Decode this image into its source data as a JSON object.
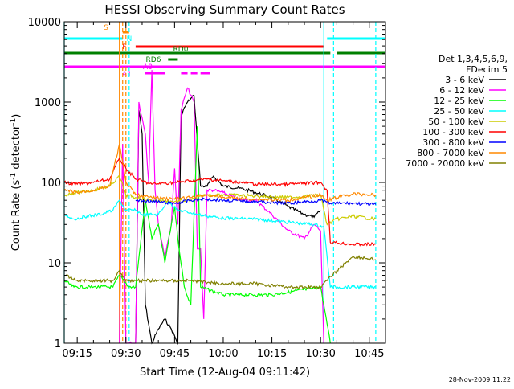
{
  "chart_data": {
    "type": "line",
    "title": "HESSI Observing Summary Count Rates",
    "xlabel": "Start Time (12-Aug-04 09:11:42)",
    "ylabel_main": "Count Rate (s",
    "ylabel_sup1": "-1",
    "ylabel_mid": " detector",
    "ylabel_sup2": "-1",
    "ylabel_end": ")",
    "y_scale": "log",
    "ylim": [
      1,
      10000
    ],
    "xlim": [
      "09:11",
      "10:50"
    ],
    "x_ticks": [
      "09:15",
      "09:30",
      "09:45",
      "10:00",
      "10:15",
      "10:30",
      "10:45"
    ],
    "y_ticks": [
      "1",
      "10",
      "100",
      "1000",
      "10000"
    ],
    "footer_date": "28-Nov-2009 11:22",
    "legend": {
      "header": [
        "Det 1,3,4,5,6,9,",
        "FDecim 5"
      ],
      "entries": [
        {
          "label": "3 - 6 keV",
          "color": "#000000"
        },
        {
          "label": "6 - 12 keV",
          "color": "#ff00ff"
        },
        {
          "label": "12 - 25 keV",
          "color": "#00ff00"
        },
        {
          "label": "25 - 50 keV",
          "color": "#00ffff"
        },
        {
          "label": "50 - 100 keV",
          "color": "#cccc00"
        },
        {
          "label": "100 - 300 keV",
          "color": "#ff0000"
        },
        {
          "label": "300 - 800 keV",
          "color": "#0000ff"
        },
        {
          "label": "800 - 7000 keV",
          "color": "#ff8800"
        },
        {
          "label": "7000 - 20000 keV",
          "color": "#808000"
        }
      ]
    },
    "flags": [
      {
        "label": "S",
        "color": "#ff8800",
        "segments": [
          [
            "09:29",
            "09:31"
          ]
        ]
      },
      {
        "label": "N",
        "color": "#00ffff",
        "segments": [
          [
            "09:11",
            "09:29"
          ],
          [
            "10:32",
            "10:50"
          ]
        ]
      },
      {
        "label": "F",
        "color": "#ff0000",
        "segments": [
          [
            "09:33",
            "10:31"
          ]
        ]
      },
      {
        "label": "RD0",
        "color": "#008000",
        "segments": [
          [
            "09:11",
            "10:33"
          ],
          [
            "10:35",
            "10:50"
          ]
        ]
      },
      {
        "label": "RD6",
        "color": "#008000",
        "segments": [
          [
            "09:43",
            "09:46"
          ]
        ]
      },
      {
        "label": "A0",
        "color": "#ff00ff",
        "segments": [
          [
            "09:11",
            "10:50"
          ]
        ]
      },
      {
        "label": "A1",
        "color": "#ff00ff",
        "segments": [
          [
            "09:36",
            "09:42"
          ],
          [
            "09:47",
            "09:49"
          ],
          [
            "09:50",
            "09:52"
          ],
          [
            "09:53",
            "09:56"
          ]
        ]
      }
    ],
    "vlines": [
      {
        "time": "09:11",
        "color": "#00ffff",
        "style": "solid"
      },
      {
        "time": "09:28",
        "color": "#ff8800",
        "style": "solid"
      },
      {
        "time": "09:29",
        "color": "#ff8800",
        "style": "dashed"
      },
      {
        "time": "09:30",
        "color": "#ff8800",
        "style": "dashed"
      },
      {
        "time": "09:31",
        "color": "#00ffff",
        "style": "dashed"
      },
      {
        "time": "10:31",
        "color": "#00ffff",
        "style": "solid"
      },
      {
        "time": "10:34",
        "color": "#00ffff",
        "style": "dashed"
      },
      {
        "time": "10:47",
        "color": "#00ffff",
        "style": "dashed"
      }
    ],
    "series": [
      {
        "name": "3 - 6 keV",
        "color": "#000000",
        "points": [
          [
            "09:33",
            1
          ],
          [
            "09:34",
            800
          ],
          [
            "09:35",
            400
          ],
          [
            "09:36",
            3
          ],
          [
            "09:38",
            1
          ],
          [
            "09:40",
            1.5
          ],
          [
            "09:42",
            2
          ],
          [
            "09:44",
            1.5
          ],
          [
            "09:46",
            1
          ],
          [
            "09:47",
            700
          ],
          [
            "09:49",
            1000
          ],
          [
            "09:51",
            1200
          ],
          [
            "09:53",
            90
          ],
          [
            "09:55",
            90
          ],
          [
            "09:57",
            120
          ],
          [
            "10:00",
            90
          ],
          [
            "10:05",
            85
          ],
          [
            "10:10",
            75
          ],
          [
            "10:15",
            65
          ],
          [
            "10:20",
            50
          ],
          [
            "10:25",
            40
          ],
          [
            "10:28",
            37
          ],
          [
            "10:30",
            45
          ]
        ]
      },
      {
        "name": "6 - 12 keV",
        "color": "#ff00ff",
        "points": [
          [
            "09:28",
            1
          ],
          [
            "09:29",
            300
          ],
          [
            "09:30",
            1
          ],
          [
            "09:31",
            1
          ],
          [
            "09:33",
            1
          ],
          [
            "09:34",
            1000
          ],
          [
            "09:36",
            400
          ],
          [
            "09:37",
            100
          ],
          [
            "09:38",
            2500
          ],
          [
            "09:39",
            80
          ],
          [
            "09:40",
            30
          ],
          [
            "09:42",
            12
          ],
          [
            "09:44",
            30
          ],
          [
            "09:45",
            150
          ],
          [
            "09:46",
            30
          ],
          [
            "09:47",
            800
          ],
          [
            "09:49",
            1500
          ],
          [
            "09:51",
            1000
          ],
          [
            "09:52",
            15
          ],
          [
            "09:53",
            15
          ],
          [
            "09:54",
            2
          ],
          [
            "09:55",
            80
          ],
          [
            "09:57",
            80
          ],
          [
            "10:00",
            75
          ],
          [
            "10:05",
            60
          ],
          [
            "10:10",
            60
          ],
          [
            "10:15",
            40
          ],
          [
            "10:20",
            25
          ],
          [
            "10:25",
            20
          ],
          [
            "10:28",
            30
          ],
          [
            "10:30",
            25
          ],
          [
            "10:31",
            1
          ]
        ]
      },
      {
        "name": "12 - 25 keV",
        "color": "#00ff00",
        "points": [
          [
            "09:11",
            6
          ],
          [
            "09:14",
            5
          ],
          [
            "09:20",
            5
          ],
          [
            "09:26",
            5
          ],
          [
            "09:28",
            7
          ],
          [
            "09:31",
            5
          ],
          [
            "09:33",
            5
          ],
          [
            "09:36",
            60
          ],
          [
            "09:38",
            20
          ],
          [
            "09:40",
            30
          ],
          [
            "09:42",
            10
          ],
          [
            "09:44",
            30
          ],
          [
            "09:45",
            50
          ],
          [
            "09:46",
            20
          ],
          [
            "09:48",
            5
          ],
          [
            "09:50",
            3
          ],
          [
            "09:52",
            500
          ],
          [
            "09:53",
            5
          ],
          [
            "10:00",
            4
          ],
          [
            "10:15",
            4
          ],
          [
            "10:30",
            5
          ],
          [
            "10:31",
            3
          ],
          [
            "10:33",
            1
          ]
        ]
      },
      {
        "name": "25 - 50 keV",
        "color": "#00ffff",
        "points": [
          [
            "09:11",
            40
          ],
          [
            "09:14",
            35
          ],
          [
            "09:18",
            38
          ],
          [
            "09:22",
            40
          ],
          [
            "09:26",
            45
          ],
          [
            "09:28",
            60
          ],
          [
            "09:30",
            45
          ],
          [
            "09:33",
            45
          ],
          [
            "09:35",
            40
          ],
          [
            "09:38",
            40
          ],
          [
            "09:40",
            40
          ],
          [
            "09:43",
            60
          ],
          [
            "09:46",
            45
          ],
          [
            "09:50",
            42
          ],
          [
            "09:55",
            38
          ],
          [
            "10:00",
            36
          ],
          [
            "10:10",
            35
          ],
          [
            "10:20",
            32
          ],
          [
            "10:28",
            30
          ],
          [
            "10:31",
            28
          ],
          [
            "10:33",
            5
          ],
          [
            "10:40",
            5
          ],
          [
            "10:47",
            5
          ]
        ]
      },
      {
        "name": "50 - 100 keV",
        "color": "#cccc00",
        "points": [
          [
            "09:11",
            70
          ],
          [
            "09:15",
            75
          ],
          [
            "09:20",
            80
          ],
          [
            "09:25",
            90
          ],
          [
            "09:28",
            120
          ],
          [
            "09:30",
            70
          ],
          [
            "09:33",
            65
          ],
          [
            "09:38",
            60
          ],
          [
            "09:45",
            58
          ],
          [
            "09:50",
            60
          ],
          [
            "09:55",
            70
          ],
          [
            "10:00",
            70
          ],
          [
            "10:10",
            68
          ],
          [
            "10:20",
            65
          ],
          [
            "10:30",
            70
          ],
          [
            "10:32",
            30
          ],
          [
            "10:35",
            35
          ],
          [
            "10:40",
            38
          ],
          [
            "10:47",
            35
          ]
        ]
      },
      {
        "name": "100 - 300 keV",
        "color": "#ff0000",
        "points": [
          [
            "09:11",
            100
          ],
          [
            "09:15",
            95
          ],
          [
            "09:20",
            100
          ],
          [
            "09:25",
            110
          ],
          [
            "09:28",
            200
          ],
          [
            "09:30",
            150
          ],
          [
            "09:33",
            110
          ],
          [
            "09:38",
            95
          ],
          [
            "09:45",
            100
          ],
          [
            "09:50",
            105
          ],
          [
            "09:55",
            110
          ],
          [
            "10:00",
            105
          ],
          [
            "10:10",
            95
          ],
          [
            "10:20",
            95
          ],
          [
            "10:30",
            100
          ],
          [
            "10:32",
            80
          ],
          [
            "10:33",
            18
          ],
          [
            "10:40",
            17
          ],
          [
            "10:47",
            17
          ]
        ]
      },
      {
        "name": "300 - 800 keV",
        "color": "#0000ff",
        "points": [
          [
            "09:33",
            60
          ],
          [
            "09:38",
            58
          ],
          [
            "09:45",
            55
          ],
          [
            "09:50",
            60
          ],
          [
            "09:55",
            62
          ],
          [
            "10:00",
            60
          ],
          [
            "10:10",
            58
          ],
          [
            "10:20",
            55
          ],
          [
            "10:30",
            60
          ],
          [
            "10:33",
            55
          ],
          [
            "10:40",
            55
          ],
          [
            "10:47",
            53
          ]
        ]
      },
      {
        "name": "800 - 7000 keV",
        "color": "#ff8800",
        "points": [
          [
            "09:11",
            80
          ],
          [
            "09:15",
            75
          ],
          [
            "09:20",
            80
          ],
          [
            "09:25",
            90
          ],
          [
            "09:28",
            300
          ],
          [
            "09:30",
            100
          ],
          [
            "09:33",
            70
          ],
          [
            "09:38",
            65
          ],
          [
            "09:45",
            62
          ],
          [
            "09:50",
            65
          ],
          [
            "09:55",
            70
          ],
          [
            "10:00",
            65
          ],
          [
            "10:10",
            62
          ],
          [
            "10:20",
            60
          ],
          [
            "10:30",
            70
          ],
          [
            "10:32",
            60
          ],
          [
            "10:35",
            65
          ],
          [
            "10:40",
            72
          ],
          [
            "10:47",
            70
          ]
        ]
      },
      {
        "name": "7000 - 20000 keV",
        "color": "#808000",
        "points": [
          [
            "09:11",
            7
          ],
          [
            "09:15",
            6
          ],
          [
            "09:20",
            6
          ],
          [
            "09:26",
            6
          ],
          [
            "09:28",
            8
          ],
          [
            "09:30",
            6
          ],
          [
            "09:33",
            6
          ],
          [
            "09:40",
            6
          ],
          [
            "09:50",
            6
          ],
          [
            "10:00",
            5.5
          ],
          [
            "10:10",
            5.5
          ],
          [
            "10:20",
            5
          ],
          [
            "10:30",
            5
          ],
          [
            "10:32",
            6
          ],
          [
            "10:35",
            8
          ],
          [
            "10:40",
            12
          ],
          [
            "10:47",
            11
          ]
        ]
      }
    ]
  }
}
